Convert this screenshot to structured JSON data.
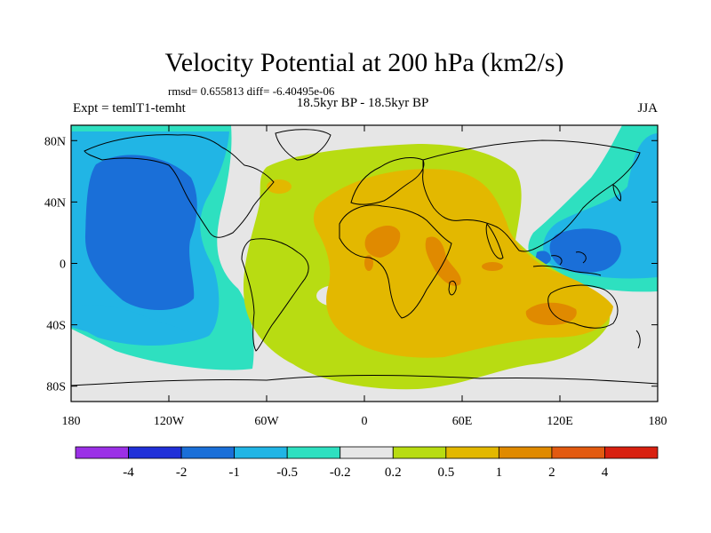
{
  "chart_data": {
    "type": "contour-map",
    "title": "Velocity Potential at 200 hPa (km2/s)",
    "stats_text": "rmsd= 0.655813 diff= -6.40495e-06",
    "experiment_label": "Expt = temlT1-temht",
    "period_label": "18.5kyr BP - 18.5kyr BP",
    "season_label": "JJA",
    "x_ticks": [
      "180",
      "120W",
      "60W",
      "0",
      "60E",
      "120E",
      "180"
    ],
    "x_tick_values": [
      -180,
      -120,
      -60,
      0,
      60,
      120,
      180
    ],
    "y_ticks": [
      "80N",
      "40N",
      "0",
      "40S",
      "80S"
    ],
    "y_tick_values": [
      80,
      40,
      0,
      -40,
      -80
    ],
    "xlim": [
      -180,
      180
    ],
    "ylim": [
      -90,
      90
    ],
    "colorbar": {
      "colors": [
        "#9b30e6",
        "#2030d8",
        "#1a6fd8",
        "#21b5e5",
        "#2ee0c0",
        "#e6e6e6",
        "#b8dc12",
        "#e3b800",
        "#e08a00",
        "#e25a10",
        "#d82010"
      ],
      "labels": [
        "-4",
        "-2",
        "-1",
        "-0.5",
        "-0.2",
        "0.2",
        "0.5",
        "1",
        "2",
        "4"
      ]
    },
    "contour_fields": {
      "background_level": "0",
      "negative_regions": [
        {
          "level": "-0.2 to -0.5",
          "region": "North Pacific",
          "lon_range": [
            -180,
            -100
          ],
          "lat_range": [
            -35,
            90
          ]
        },
        {
          "level": "-1 to -2",
          "region": "Central North Pacific",
          "lon_range": [
            -168,
            -128
          ],
          "lat_range": [
            -20,
            60
          ]
        },
        {
          "level": "-0.2 to -0.5",
          "region": "South Pacific",
          "lon_range": [
            -180,
            -100
          ],
          "lat_range": [
            -70,
            -30
          ]
        },
        {
          "level": "-0.2 to -0.5",
          "region": "West Pacific / East Asia",
          "lon_range": [
            105,
            180
          ],
          "lat_range": [
            -25,
            90
          ]
        },
        {
          "level": "-1 to -2",
          "region": "Maritime Continent",
          "lon_range": [
            120,
            152
          ],
          "lat_range": [
            -8,
            20
          ]
        }
      ],
      "positive_regions": [
        {
          "level": "0.2 to 0.5",
          "region": "Atlantic / Africa / Indian Ocean",
          "lon_range": [
            -75,
            160
          ],
          "lat_range": [
            -75,
            70
          ]
        },
        {
          "level": "0.5 to 1",
          "region": "Africa / Indian Ocean core",
          "lon_range": [
            -25,
            150
          ],
          "lat_range": [
            -55,
            45
          ]
        },
        {
          "level": "1 to 2",
          "region": "Central Africa",
          "lon_range": [
            0,
            15
          ],
          "lat_range": [
            3,
            22
          ]
        },
        {
          "level": "1 to 2",
          "region": "Horn of Africa",
          "lon_range": [
            40,
            50
          ],
          "lat_range": [
            -5,
            15
          ]
        },
        {
          "level": "1 to 2",
          "region": "Southern Indian Ocean",
          "lon_range": [
            100,
            130
          ],
          "lat_range": [
            -40,
            -28
          ]
        }
      ]
    }
  }
}
